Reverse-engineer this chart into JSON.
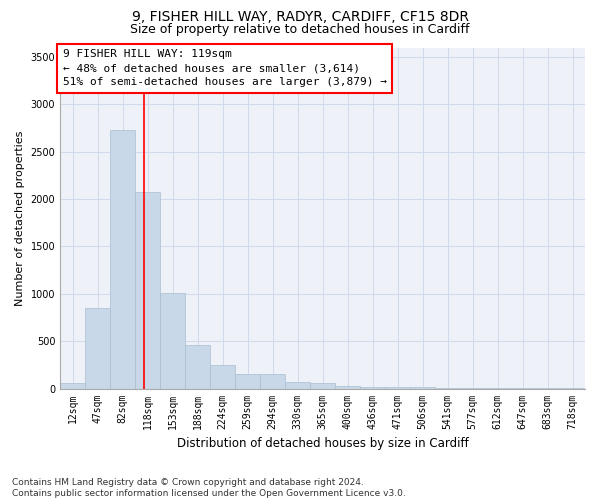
{
  "title1": "9, FISHER HILL WAY, RADYR, CARDIFF, CF15 8DR",
  "title2": "Size of property relative to detached houses in Cardiff",
  "xlabel": "Distribution of detached houses by size in Cardiff",
  "ylabel": "Number of detached properties",
  "categories": [
    "12sqm",
    "47sqm",
    "82sqm",
    "118sqm",
    "153sqm",
    "188sqm",
    "224sqm",
    "259sqm",
    "294sqm",
    "330sqm",
    "365sqm",
    "400sqm",
    "436sqm",
    "471sqm",
    "506sqm",
    "541sqm",
    "577sqm",
    "612sqm",
    "647sqm",
    "683sqm",
    "718sqm"
  ],
  "bar_heights": [
    60,
    850,
    2730,
    2080,
    1010,
    460,
    250,
    155,
    155,
    65,
    55,
    30,
    20,
    20,
    15,
    10,
    5,
    5,
    3,
    3,
    2
  ],
  "bar_color": "#c8d8e8",
  "bar_edge_color": "#a8bfd0",
  "grid_color": "#d0daea",
  "background_color": "#eef2f8",
  "annotation_box_text": "9 FISHER HILL WAY: 119sqm\n← 48% of detached houses are smaller (3,614)\n51% of semi-detached houses are larger (3,879) →",
  "red_line_x": 2.85,
  "ylim": [
    0,
    3600
  ],
  "yticks": [
    0,
    500,
    1000,
    1500,
    2000,
    2500,
    3000,
    3500
  ],
  "footnote": "Contains HM Land Registry data © Crown copyright and database right 2024.\nContains public sector information licensed under the Open Government Licence v3.0.",
  "title1_fontsize": 10,
  "title2_fontsize": 9,
  "xlabel_fontsize": 8.5,
  "ylabel_fontsize": 8,
  "tick_fontsize": 7,
  "annotation_fontsize": 8,
  "footnote_fontsize": 6.5
}
